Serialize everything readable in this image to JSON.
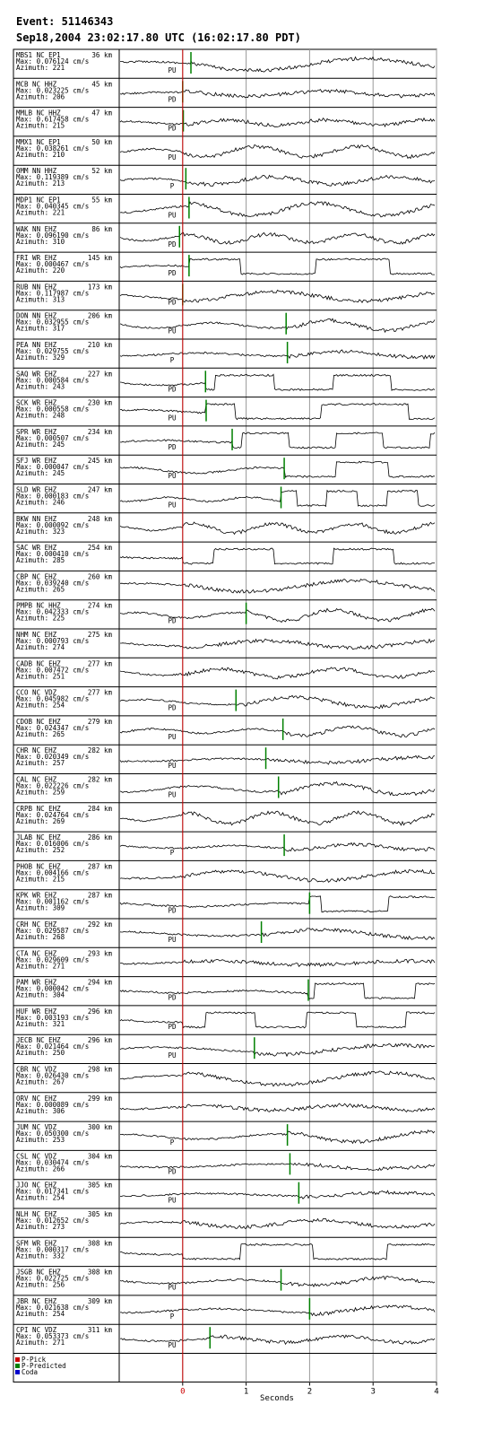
{
  "chart_data": {
    "type": "seismogram",
    "title": "Event: 51146343",
    "subtitle": "Sep18,2004 23:02:17.80 UTC (16:02:17.80 PDT)",
    "x_label": "Seconds",
    "xlim": [
      -1,
      4
    ],
    "xticks": [
      0,
      1,
      2,
      3,
      4
    ],
    "grid": true,
    "p_pick": 0,
    "legend": [
      {
        "name": "P-Pick",
        "color": "#cc0000"
      },
      {
        "name": "P-Predicted",
        "color": "#008000"
      },
      {
        "name": "Coda",
        "color": "#0000cc"
      }
    ],
    "stations": [
      {
        "station": "MBS1  NC EP1",
        "distance": "36 km",
        "max": "Max: 0.076124 cm/s",
        "azimuth": "Azimuth: 221",
        "pick": "PU",
        "predicted": 0.13
      },
      {
        "station": "MCB   NC HHZ",
        "distance": "45 km",
        "max": "Max: 0.023225 cm/s",
        "azimuth": "Azimuth: 206",
        "pick": "PD",
        "predicted": 0.0
      },
      {
        "station": "MMLB  NC HHZ",
        "distance": "47 km",
        "max": "Max: 0.617458 cm/s",
        "azimuth": "Azimuth: 215",
        "pick": "PD",
        "predicted": 0.01
      },
      {
        "station": "MMX1  NC EP1",
        "distance": "50 km",
        "max": "Max: 0.038261 cm/s",
        "azimuth": "Azimuth: 210",
        "pick": "PU",
        "predicted": null
      },
      {
        "station": "OMM   NN HHZ",
        "distance": "52 km",
        "max": "Max: 0.119389 cm/s",
        "azimuth": "Azimuth: 213",
        "pick": "P",
        "predicted": 0.05
      },
      {
        "station": "MDP1  NC EP1",
        "distance": "55 km",
        "max": "Max: 0.040345 cm/s",
        "azimuth": "Azimuth: 221",
        "pick": "PU",
        "predicted": 0.1
      },
      {
        "station": "WAK   NN EHZ",
        "distance": "86 km",
        "max": "Max: 0.096190 cm/s",
        "azimuth": "Azimuth: 310",
        "pick": "PD",
        "predicted": -0.05
      },
      {
        "station": "FRI   WR EHZ",
        "distance": "145 km",
        "max": "Max: 0.000467 cm/s",
        "azimuth": "Azimuth: 220",
        "pick": "PD",
        "predicted": 0.1
      },
      {
        "station": "RUB   NN EHZ",
        "distance": "173 km",
        "max": "Max: 0.117987 cm/s",
        "azimuth": "Azimuth: 313",
        "pick": "PD",
        "predicted": 0.0
      },
      {
        "station": "DON   NN EHZ",
        "distance": "206 km",
        "max": "Max: 0.032955 cm/s",
        "azimuth": "Azimuth: 317",
        "pick": "PU",
        "predicted": 1.63
      },
      {
        "station": "PEA   NN EHZ",
        "distance": "210 km",
        "max": "Max: 0.029755 cm/s",
        "azimuth": "Azimuth: 329",
        "pick": "P",
        "predicted": 1.65
      },
      {
        "station": "SAQ   WR EHZ",
        "distance": "227 km",
        "max": "Max: 0.000584 cm/s",
        "azimuth": "Azimuth: 243",
        "pick": "PD",
        "predicted": 0.36
      },
      {
        "station": "SCK   WR EHZ",
        "distance": "230 km",
        "max": "Max: 0.000558 cm/s",
        "azimuth": "Azimuth: 248",
        "pick": "PU",
        "predicted": 0.37
      },
      {
        "station": "SPR   WR EHZ",
        "distance": "234 km",
        "max": "Max: 0.000507 cm/s",
        "azimuth": "Azimuth: 245",
        "pick": "PD",
        "predicted": 0.78
      },
      {
        "station": "SFJ   WR EHZ",
        "distance": "245 km",
        "max": "Max: 0.000047 cm/s",
        "azimuth": "Azimuth: 245",
        "pick": "PU",
        "predicted": 1.6
      },
      {
        "station": "SLD   WR EHZ",
        "distance": "247 km",
        "max": "Max: 0.000183 cm/s",
        "azimuth": "Azimuth: 246",
        "pick": "PU",
        "predicted": 1.55
      },
      {
        "station": "BKW   NN EHZ",
        "distance": "248 km",
        "max": "Max: 0.000092 cm/s",
        "azimuth": "Azimuth: 323",
        "pick": null,
        "predicted": null
      },
      {
        "station": "SAC   WR EHZ",
        "distance": "254 km",
        "max": "Max: 0.000410 cm/s",
        "azimuth": "Azimuth: 285",
        "pick": null,
        "predicted": null
      },
      {
        "station": "CBP   NC EHZ",
        "distance": "260 km",
        "max": "Max: 0.039240 cm/s",
        "azimuth": "Azimuth: 265",
        "pick": null,
        "predicted": null
      },
      {
        "station": "PMPB  NC HHZ",
        "distance": "274 km",
        "max": "Max: 0.042333 cm/s",
        "azimuth": "Azimuth: 225",
        "pick": "PD",
        "predicted": 1.0
      },
      {
        "station": "NHM   NC EHZ",
        "distance": "275 km",
        "max": "Max: 0.000793 cm/s",
        "azimuth": "Azimuth: 274",
        "pick": null,
        "predicted": null
      },
      {
        "station": "CADB  NC EHZ",
        "distance": "277 km",
        "max": "Max: 0.007472 cm/s",
        "azimuth": "Azimuth: 251",
        "pick": null,
        "predicted": null
      },
      {
        "station": "CCO   NC VDZ",
        "distance": "277 km",
        "max": "Max: 0.045982 cm/s",
        "azimuth": "Azimuth: 254",
        "pick": "PD",
        "predicted": 0.84
      },
      {
        "station": "CDOB  NC EHZ",
        "distance": "279 km",
        "max": "Max: 0.024347 cm/s",
        "azimuth": "Azimuth: 265",
        "pick": "PU",
        "predicted": 1.58
      },
      {
        "station": "CHR   NC EHZ",
        "distance": "282 km",
        "max": "Max: 0.020349 cm/s",
        "azimuth": "Azimuth: 257",
        "pick": "PU",
        "predicted": 1.31
      },
      {
        "station": "CAL   NC EHZ",
        "distance": "282 km",
        "max": "Max: 0.022226 cm/s",
        "azimuth": "Azimuth: 259",
        "pick": "PU",
        "predicted": 1.51
      },
      {
        "station": "CRPB  NC EHZ",
        "distance": "284 km",
        "max": "Max: 0.024764 cm/s",
        "azimuth": "Azimuth: 269",
        "pick": null,
        "predicted": null
      },
      {
        "station": "JLAB  NC EHZ",
        "distance": "286 km",
        "max": "Max: 0.016006 cm/s",
        "azimuth": "Azimuth: 252",
        "pick": "P",
        "predicted": 1.6
      },
      {
        "station": "PHOB  NC EHZ",
        "distance": "287 km",
        "max": "Max: 0.004166 cm/s",
        "azimuth": "Azimuth: 215",
        "pick": null,
        "predicted": null
      },
      {
        "station": "KPK   WR EHZ",
        "distance": "287 km",
        "max": "Max: 0.001162 cm/s",
        "azimuth": "Azimuth: 309",
        "pick": "PD",
        "predicted": 2.0
      },
      {
        "station": "CRH   NC EHZ",
        "distance": "292 km",
        "max": "Max: 0.029587 cm/s",
        "azimuth": "Azimuth: 268",
        "pick": "PU",
        "predicted": 1.24
      },
      {
        "station": "CTA   NC EHZ",
        "distance": "293 km",
        "max": "Max: 0.029609 cm/s",
        "azimuth": "Azimuth: 271",
        "pick": null,
        "predicted": null
      },
      {
        "station": "PAM   WR EHZ",
        "distance": "294 km",
        "max": "Max: 0.000042 cm/s",
        "azimuth": "Azimuth: 304",
        "pick": "PD",
        "predicted": 1.98
      },
      {
        "station": "HUF   WR EHZ",
        "distance": "296 km",
        "max": "Max: 0.003193 cm/s",
        "azimuth": "Azimuth: 321",
        "pick": "PD",
        "predicted": null
      },
      {
        "station": "JECB  NC EHZ",
        "distance": "296 km",
        "max": "Max: 0.021464 cm/s",
        "azimuth": "Azimuth: 250",
        "pick": "PU",
        "predicted": 1.13
      },
      {
        "station": "CBR   NC VDZ",
        "distance": "298 km",
        "max": "Max: 0.026430 cm/s",
        "azimuth": "Azimuth: 267",
        "pick": null,
        "predicted": null
      },
      {
        "station": "ORV   NC EHZ",
        "distance": "299 km",
        "max": "Max: 0.000089 cm/s",
        "azimuth": "Azimuth: 306",
        "pick": null,
        "predicted": null
      },
      {
        "station": "JUM   NC VDZ",
        "distance": "300 km",
        "max": "Max: 0.050300 cm/s",
        "azimuth": "Azimuth: 253",
        "pick": "P",
        "predicted": 1.65
      },
      {
        "station": "CSL   NC VDZ",
        "distance": "304 km",
        "max": "Max: 0.030474 cm/s",
        "azimuth": "Azimuth: 266",
        "pick": "PD",
        "predicted": 1.69
      },
      {
        "station": "JJO   NC EHZ",
        "distance": "305 km",
        "max": "Max: 0.017341 cm/s",
        "azimuth": "Azimuth: 254",
        "pick": "PU",
        "predicted": 1.83
      },
      {
        "station": "NLH   NC EHZ",
        "distance": "305 km",
        "max": "Max: 0.012652 cm/s",
        "azimuth": "Azimuth: 273",
        "pick": null,
        "predicted": null
      },
      {
        "station": "SFM   WR EHZ",
        "distance": "308 km",
        "max": "Max: 0.000317 cm/s",
        "azimuth": "Azimuth: 332",
        "pick": null,
        "predicted": null
      },
      {
        "station": "JSGB  NC EHZ",
        "distance": "308 km",
        "max": "Max: 0.022725 cm/s",
        "azimuth": "Azimuth: 256",
        "pick": "PU",
        "predicted": 1.55
      },
      {
        "station": "JBR   NC EHZ",
        "distance": "309 km",
        "max": "Max: 0.021638 cm/s",
        "azimuth": "Azimuth: 254",
        "pick": "P",
        "predicted": 2.0
      },
      {
        "station": "CPI   NC VDZ",
        "distance": "311 km",
        "max": "Max: 0.053373 cm/s",
        "azimuth": "Azimuth: 271",
        "pick": "PU",
        "predicted": 0.43
      }
    ]
  }
}
